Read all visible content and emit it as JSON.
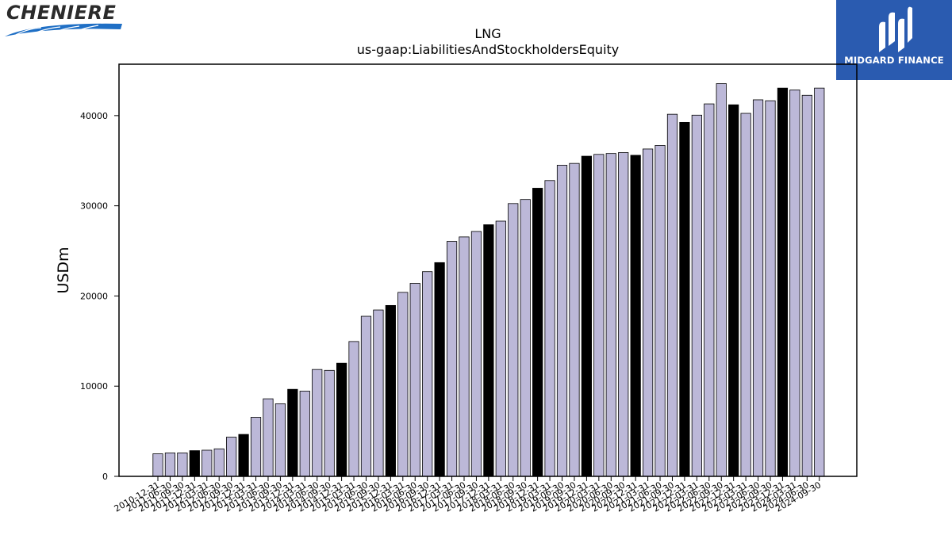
{
  "logos": {
    "left_text": "CHENIERE",
    "right_text": "MIDGARD FINANCE"
  },
  "colors": {
    "bar_default": "#bcb8d8",
    "bar_highlight": "#000000",
    "bar_edge": "#000000",
    "brand_blue": "#2a5bb0",
    "cheniere_blue": "#1f6fc5"
  },
  "chart_data": {
    "type": "bar",
    "title": "LNG",
    "subtitle": "us-gaap:LiabilitiesAndStockholdersEquity",
    "xlabel": "",
    "ylabel": "USDm",
    "ylim": [
      0,
      45700
    ],
    "yticks": [
      0,
      10000,
      20000,
      30000,
      40000
    ],
    "grid": false,
    "legend": "none",
    "categories": [
      "2010-12-31",
      "2011-06-30",
      "2011-09-30",
      "2011-12-31",
      "2012-03-31",
      "2012-06-30",
      "2012-09-30",
      "2012-12-31",
      "2013-03-31",
      "2013-06-30",
      "2013-09-30",
      "2013-12-31",
      "2014-03-31",
      "2014-06-30",
      "2014-09-30",
      "2014-12-31",
      "2015-03-31",
      "2015-06-30",
      "2015-09-30",
      "2015-12-31",
      "2016-03-31",
      "2016-06-30",
      "2016-09-30",
      "2016-12-31",
      "2017-03-31",
      "2017-06-30",
      "2017-09-30",
      "2017-12-31",
      "2018-03-31",
      "2018-06-30",
      "2018-09-30",
      "2018-12-31",
      "2019-03-31",
      "2019-06-30",
      "2019-09-30",
      "2019-12-31",
      "2020-03-31",
      "2020-06-30",
      "2020-09-30",
      "2020-12-31",
      "2021-03-31",
      "2021-06-30",
      "2021-09-30",
      "2021-12-31",
      "2022-03-31",
      "2022-06-30",
      "2022-09-30",
      "2022-12-31",
      "2023-03-31",
      "2023-06-30",
      "2023-09-30",
      "2023-12-31",
      "2024-03-31",
      "2024-06-30",
      "2024-09-30"
    ],
    "values": [
      2500,
      2600,
      2600,
      2850,
      2900,
      3050,
      4350,
      4650,
      6550,
      8600,
      8050,
      9650,
      9450,
      11850,
      11750,
      12550,
      14950,
      17750,
      18450,
      18950,
      20400,
      21400,
      22700,
      23700,
      26050,
      26550,
      27150,
      27900,
      28300,
      30250,
      30700,
      31950,
      32800,
      34500,
      34700,
      35500,
      35700,
      35800,
      35900,
      35600,
      36300,
      36700,
      40150,
      39250,
      40050,
      41300,
      43550,
      41200,
      40250,
      41750,
      41650,
      43050,
      42850,
      42250,
      43050
    ],
    "highlight_indices": [
      3,
      7,
      11,
      15,
      19,
      23,
      27,
      31,
      35,
      39,
      43,
      47,
      51
    ]
  }
}
